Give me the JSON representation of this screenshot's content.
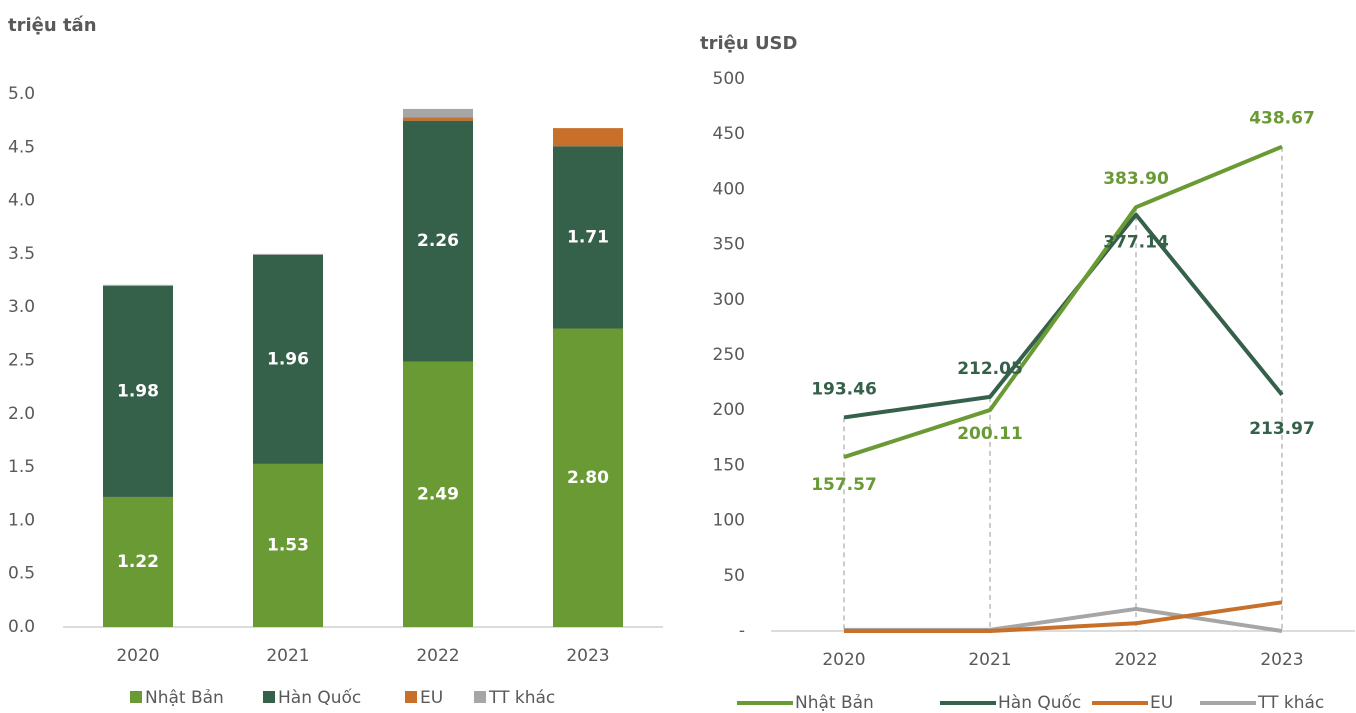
{
  "chart_data": [
    {
      "type": "stacked_bar",
      "title": "triệu tấn",
      "categories": [
        "2020",
        "2021",
        "2022",
        "2023"
      ],
      "series": [
        {
          "name": "Nhật Bản",
          "color": "#6a9a34",
          "values": [
            1.22,
            1.53,
            2.49,
            2.8
          ],
          "value_labels": [
            "1.22",
            "1.53",
            "2.49",
            "2.80"
          ]
        },
        {
          "name": "Hàn Quốc",
          "color": "#35604a",
          "values": [
            1.98,
            1.96,
            2.26,
            1.71
          ],
          "value_labels": [
            "1.98",
            "1.96",
            "2.26",
            "1.71"
          ]
        },
        {
          "name": "EU",
          "color": "#c8702a",
          "values": [
            0,
            0,
            0.03,
            0.17
          ]
        },
        {
          "name": "TT khác",
          "color": "#a6a6a6",
          "values": [
            0.01,
            0.01,
            0.08,
            0
          ]
        }
      ],
      "ylim": [
        0,
        5
      ],
      "yticks": [
        {
          "value": 0,
          "label": "0.0"
        },
        0.5,
        {
          "value": 1,
          "label": "1.0"
        },
        1.5,
        {
          "value": 2,
          "label": "2.0"
        },
        2.5,
        {
          "value": 3,
          "label": "3.0"
        },
        3.5,
        {
          "value": 4,
          "label": "4.0"
        },
        4.5,
        {
          "value": 5,
          "label": "5.0"
        }
      ],
      "legend": "bottom"
    },
    {
      "type": "line",
      "title": "triệu USD",
      "categories": [
        "2020",
        "2021",
        "2022",
        "2023"
      ],
      "series": [
        {
          "name": "Nhật Bản",
          "color": "#6a9a34",
          "values": [
            157.57,
            200.11,
            383.9,
            438.67
          ],
          "value_labels": [
            "157.57",
            "200.11",
            "383.90",
            "438.67"
          ]
        },
        {
          "name": "Hàn Quốc",
          "color": "#35604a",
          "values": [
            193.46,
            212.05,
            377.14,
            213.97
          ],
          "value_labels": [
            "193.46",
            "212.05",
            "377.14",
            "213.97"
          ]
        },
        {
          "name": "EU",
          "color": "#c8702a",
          "values": [
            0,
            0,
            7,
            26
          ]
        },
        {
          "name": "TT khác",
          "color": "#a6a6a6",
          "values": [
            1,
            1,
            20,
            0
          ]
        }
      ],
      "ylim": [
        0,
        500
      ],
      "yticks": [
        {
          "value": 0,
          "label": "-"
        },
        50,
        100,
        150,
        200,
        250,
        300,
        350,
        400,
        450,
        500
      ],
      "legend": "bottom"
    }
  ]
}
